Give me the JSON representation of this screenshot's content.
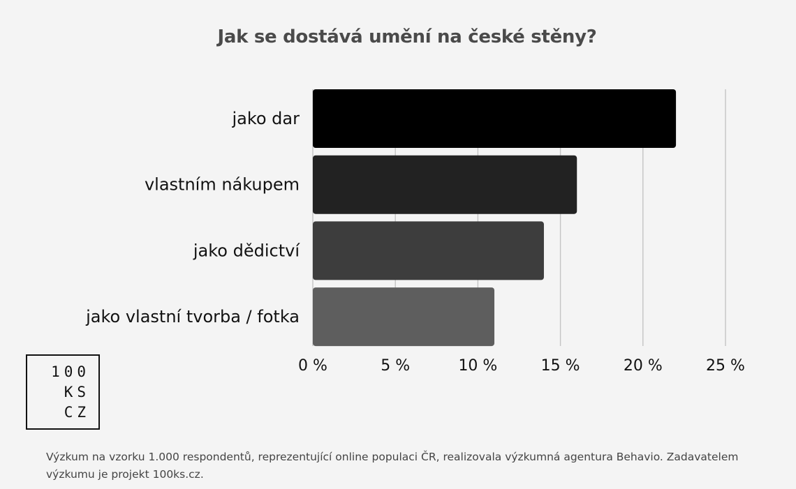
{
  "chart_data": {
    "type": "bar",
    "orientation": "horizontal",
    "title": "Jak se dostává umění na české stěny?",
    "categories": [
      "jako dar",
      "vlastním nákupem",
      "jako dědictví",
      "jako vlastní tvorba / fotka"
    ],
    "values": [
      22,
      16,
      14,
      11
    ],
    "unit": "%",
    "xlim": [
      0,
      25
    ],
    "xticks": [
      0,
      5,
      10,
      15,
      20,
      25
    ],
    "tick_labels": [
      "0 %",
      "5 %",
      "10 %",
      "15 %",
      "20 %",
      "25 %"
    ],
    "xlabel": "",
    "ylabel": "",
    "grid": "vertical",
    "legend": "none",
    "colors": [
      "#000000",
      "#222222",
      "#3d3d3d",
      "#5e5e5e"
    ]
  },
  "logo": {
    "lines": [
      "100",
      "KS",
      "CZ"
    ]
  },
  "footnote": "Výzkum na vzorku 1.000 respondentů, reprezentující online populaci ČR, realizovala výzkumná agentura Behavio. Zadavatelem výzkumu je projekt 100ks.cz."
}
